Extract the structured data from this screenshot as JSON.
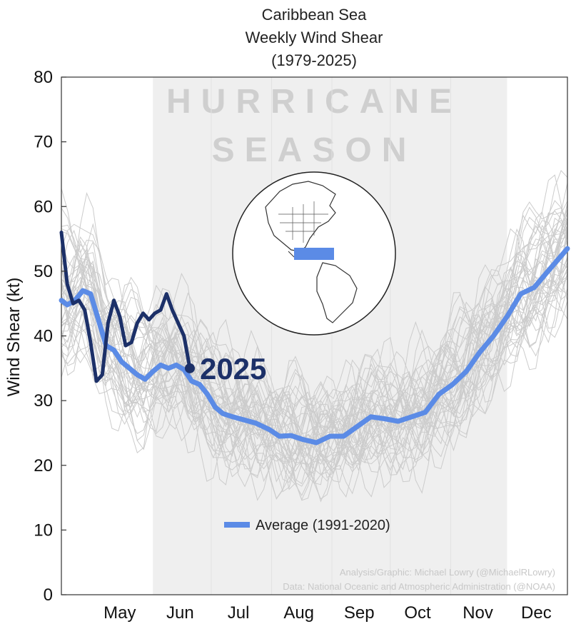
{
  "chart_data": {
    "type": "line",
    "title": [
      "Caribbean Sea",
      "Weekly Wind Shear",
      "(1979-2025)"
    ],
    "ylabel": "Wind Shear (kt)",
    "ylim": [
      0,
      80
    ],
    "yticks": [
      0,
      10,
      20,
      30,
      40,
      50,
      60,
      70,
      80
    ],
    "xlim": [
      "2025-04-15",
      "2025-12-31"
    ],
    "xticks": [
      {
        "date": "2025-05-15",
        "label": "May"
      },
      {
        "date": "2025-06-15",
        "label": "Jun"
      },
      {
        "date": "2025-07-15",
        "label": "Jul"
      },
      {
        "date": "2025-08-15",
        "label": "Aug"
      },
      {
        "date": "2025-09-15",
        "label": "Sep"
      },
      {
        "date": "2025-10-15",
        "label": "Oct"
      },
      {
        "date": "2025-11-15",
        "label": "Nov"
      },
      {
        "date": "2025-12-15",
        "label": "Dec"
      }
    ],
    "grid": false,
    "shaded_region": {
      "label_lines": [
        "HURRICANE",
        "SEASON"
      ],
      "from": "2025-06-01",
      "to": "2025-11-30"
    },
    "series": [
      {
        "name": "Average (1991-2020)",
        "color": "#5b8be6",
        "points": [
          [
            "2025-04-15",
            45.5
          ],
          [
            "2025-04-18",
            44.8
          ],
          [
            "2025-04-22",
            45.5
          ],
          [
            "2025-04-26",
            47.0
          ],
          [
            "2025-04-30",
            46.5
          ],
          [
            "2025-05-04",
            42.5
          ],
          [
            "2025-05-08",
            38.5
          ],
          [
            "2025-05-12",
            37.8
          ],
          [
            "2025-05-16",
            36.0
          ],
          [
            "2025-05-20",
            35.0
          ],
          [
            "2025-05-24",
            34.0
          ],
          [
            "2025-05-28",
            33.3
          ],
          [
            "2025-06-01",
            34.5
          ],
          [
            "2025-06-05",
            35.5
          ],
          [
            "2025-06-09",
            35.0
          ],
          [
            "2025-06-13",
            35.5
          ],
          [
            "2025-06-17",
            34.8
          ],
          [
            "2025-06-21",
            33.0
          ],
          [
            "2025-06-25",
            32.5
          ],
          [
            "2025-06-29",
            31.0
          ],
          [
            "2025-07-03",
            29.0
          ],
          [
            "2025-07-07",
            28.0
          ],
          [
            "2025-07-12",
            27.5
          ],
          [
            "2025-07-18",
            27.0
          ],
          [
            "2025-07-24",
            26.5
          ],
          [
            "2025-07-31",
            25.5
          ],
          [
            "2025-08-05",
            24.5
          ],
          [
            "2025-08-11",
            24.6
          ],
          [
            "2025-08-17",
            24.0
          ],
          [
            "2025-08-24",
            23.5
          ],
          [
            "2025-08-31",
            24.5
          ],
          [
            "2025-09-07",
            24.5
          ],
          [
            "2025-09-14",
            26.0
          ],
          [
            "2025-09-21",
            27.5
          ],
          [
            "2025-09-28",
            27.2
          ],
          [
            "2025-10-05",
            26.8
          ],
          [
            "2025-10-12",
            27.5
          ],
          [
            "2025-10-19",
            28.2
          ],
          [
            "2025-10-26",
            31.0
          ],
          [
            "2025-11-02",
            32.5
          ],
          [
            "2025-11-09",
            34.5
          ],
          [
            "2025-11-16",
            37.5
          ],
          [
            "2025-11-23",
            40.0
          ],
          [
            "2025-11-30",
            43.0
          ],
          [
            "2025-12-07",
            46.5
          ],
          [
            "2025-12-14",
            47.5
          ],
          [
            "2025-12-21",
            50.0
          ],
          [
            "2025-12-31",
            53.5
          ]
        ]
      },
      {
        "name": "2025",
        "color": "#1c3068",
        "end_label": "2025",
        "points": [
          [
            "2025-04-15",
            56.0
          ],
          [
            "2025-04-18",
            48.0
          ],
          [
            "2025-04-21",
            45.0
          ],
          [
            "2025-04-24",
            45.5
          ],
          [
            "2025-04-27",
            44.0
          ],
          [
            "2025-04-30",
            39.0
          ],
          [
            "2025-05-03",
            33.0
          ],
          [
            "2025-05-06",
            34.0
          ],
          [
            "2025-05-09",
            42.0
          ],
          [
            "2025-05-12",
            45.5
          ],
          [
            "2025-05-15",
            43.0
          ],
          [
            "2025-05-18",
            38.5
          ],
          [
            "2025-05-21",
            39.0
          ],
          [
            "2025-05-24",
            42.0
          ],
          [
            "2025-05-27",
            43.5
          ],
          [
            "2025-05-30",
            42.5
          ],
          [
            "2025-06-02",
            43.5
          ],
          [
            "2025-06-05",
            44.0
          ],
          [
            "2025-06-08",
            46.5
          ],
          [
            "2025-06-11",
            44.0
          ],
          [
            "2025-06-14",
            42.0
          ],
          [
            "2025-06-17",
            40.0
          ],
          [
            "2025-06-20",
            35.0
          ]
        ]
      }
    ],
    "background_series_note": "gray lines: weekly wind shear for each year 1979-2024",
    "credits": [
      "Analysis/Graphic: Michael Lowry (@MichaelRLowry)",
      "Data: National Oceanic and Atmospheric Administration (@NOAA)"
    ]
  },
  "colors": {
    "shade": "#efefef",
    "bg_lines": "#cccccc",
    "inset_box": "#5b8be6"
  }
}
